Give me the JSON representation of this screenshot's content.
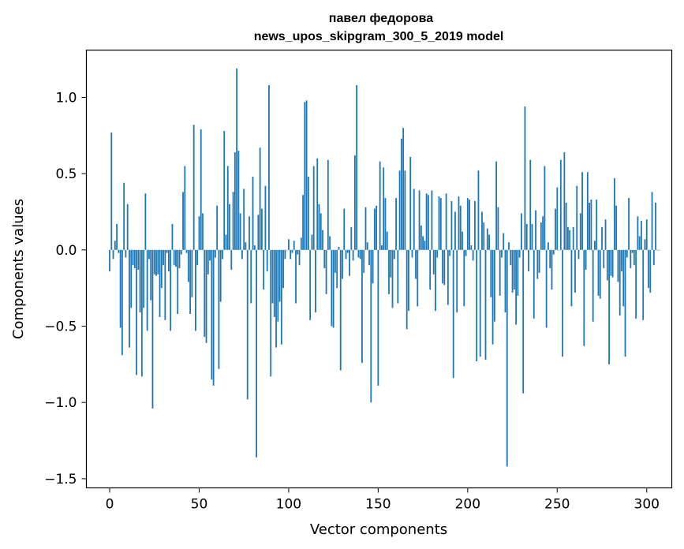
{
  "chart_data": {
    "type": "bar",
    "title": "павел федорова",
    "subtitle": "news_upos_skipgram_300_5_2019 model",
    "xlabel": "Vector components",
    "ylabel": "Components values",
    "xlim": [
      -13,
      314
    ],
    "ylim": [
      -1.56,
      1.31
    ],
    "xticks": [
      0,
      50,
      100,
      150,
      200,
      250,
      300
    ],
    "xtick_labels": [
      "0",
      "50",
      "100",
      "150",
      "200",
      "250",
      "300"
    ],
    "yticks": [
      -1.5,
      -1.0,
      -0.5,
      0.0,
      0.5,
      1.0
    ],
    "ytick_labels": [
      "−1.5",
      "−1.0",
      "−0.5",
      "0.0",
      "0.5",
      "1.0"
    ],
    "bar_color": "#1f77b4",
    "grid": false,
    "legend": "none",
    "values": [
      -0.14,
      0.77,
      -0.06,
      0.06,
      0.17,
      -0.02,
      -0.51,
      -0.69,
      0.44,
      -0.05,
      0.3,
      -0.64,
      -0.38,
      -0.1,
      -0.12,
      -0.82,
      -0.13,
      -0.41,
      -0.83,
      -0.38,
      0.37,
      -0.53,
      -0.06,
      -0.33,
      -1.04,
      -0.16,
      -0.17,
      -0.16,
      -0.44,
      -0.25,
      -0.1,
      -0.46,
      -0.02,
      -0.14,
      -0.53,
      0.17,
      -0.1,
      -0.11,
      -0.42,
      -0.12,
      -0.03,
      0.38,
      0.55,
      -0.02,
      -0.21,
      -0.42,
      -0.31,
      0.82,
      -0.53,
      -0.1,
      0.22,
      0.79,
      0.24,
      -0.57,
      -0.61,
      -0.16,
      -0.07,
      -0.85,
      -0.89,
      -0.05,
      0.29,
      -0.78,
      -0.34,
      -0.06,
      0.78,
      0.1,
      0.55,
      0.3,
      -0.13,
      0.38,
      0.64,
      1.19,
      0.65,
      0.24,
      -0.06,
      0.4,
      0.05,
      -0.98,
      0.22,
      -0.35,
      0.48,
      0.03,
      -1.36,
      0.23,
      0.67,
      0.27,
      -0.26,
      0.42,
      -0.14,
      1.08,
      -0.83,
      -0.35,
      -0.44,
      -0.64,
      -0.47,
      -0.34,
      -0.62,
      -0.25,
      -0.06,
      0.0,
      0.07,
      -0.06,
      -0.02,
      0.06,
      -0.35,
      -0.03,
      -0.1,
      0.08,
      0.36,
      0.97,
      0.98,
      0.48,
      -0.46,
      0.1,
      0.55,
      -0.41,
      0.6,
      0.3,
      0.24,
      0.13,
      -0.12,
      -0.29,
      0.59,
      0.09,
      -0.5,
      -0.51,
      -0.15,
      -0.25,
      0.02,
      -0.79,
      -0.19,
      0.27,
      -0.06,
      -0.02,
      -0.17,
      0.15,
      -0.07,
      0.62,
      1.08,
      -0.05,
      -0.06,
      -0.74,
      -0.15,
      0.28,
      0.05,
      -0.1,
      -1.0,
      -0.22,
      0.27,
      0.29,
      -0.89,
      0.58,
      0.03,
      0.54,
      0.34,
      0.12,
      -0.29,
      -0.18,
      -0.38,
      -0.06,
      0.34,
      -0.35,
      0.52,
      0.73,
      0.8,
      0.52,
      -0.52,
      -0.4,
      0.61,
      -0.05,
      0.4,
      -0.19,
      -0.37,
      0.39,
      0.16,
      0.09,
      0.06,
      0.37,
      0.36,
      -0.26,
      0.39,
      -0.16,
      -0.4,
      -0.05,
      0.35,
      0.34,
      -0.22,
      -0.23,
      0.37,
      -0.36,
      -0.04,
      0.32,
      -0.84,
      0.25,
      -0.41,
      0.35,
      0.29,
      0.12,
      -0.37,
      -0.04,
      0.34,
      0.33,
      0.03,
      -0.07,
      0.32,
      -0.73,
      0.52,
      -0.7,
      0.25,
      0.18,
      -0.72,
      0.14,
      0.1,
      -0.31,
      -0.62,
      -0.47,
      0.58,
      0.28,
      -0.3,
      -0.05,
      0.11,
      -0.41,
      -1.42,
      0.05,
      -0.1,
      -0.28,
      -0.26,
      -0.49,
      -0.3,
      -0.05,
      0.24,
      -0.94,
      0.94,
      0.17,
      -0.14,
      0.59,
      0.17,
      -0.45,
      0.26,
      -0.19,
      -0.15,
      0.18,
      0.22,
      0.55,
      -0.51,
      0.05,
      -0.12,
      -0.26,
      -0.03,
      0.27,
      0.41,
      0.0,
      0.59,
      -0.7,
      0.64,
      0.31,
      0.15,
      0.13,
      -0.37,
      0.15,
      -0.28,
      0.42,
      -0.06,
      0.24,
      0.51,
      -0.63,
      -0.13,
      0.51,
      0.31,
      0.33,
      -0.47,
      0.06,
      0.33,
      -0.3,
      -0.32,
      0.15,
      -0.12,
      0.2,
      -0.2,
      -0.75,
      -0.17,
      -0.18,
      0.47,
      0.29,
      -0.21,
      -0.43,
      -0.14,
      -0.37,
      -0.7,
      -0.05,
      0.34,
      -0.12,
      -0.02,
      -0.1,
      -0.45,
      0.22,
      0.09,
      0.19,
      -0.46,
      0.07,
      0.2,
      -0.25,
      -0.28,
      0.38,
      -0.1,
      0.31,
      0.0,
      0.0
    ]
  }
}
